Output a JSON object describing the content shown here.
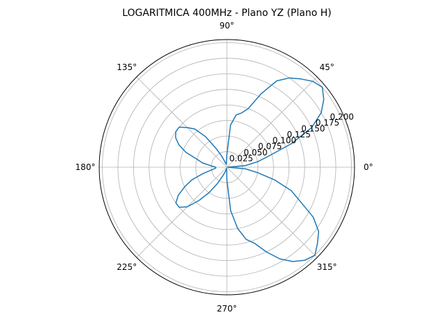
{
  "chart_data": {
    "type": "line",
    "projection": "polar",
    "title": "LOGARITMICA 400MHz - Plano YZ (Plano H)",
    "theta_unit": "degrees",
    "theta_ticks": [
      0,
      45,
      90,
      135,
      180,
      225,
      270,
      315
    ],
    "theta_tick_labels": [
      "0°",
      "45°",
      "90°",
      "135°",
      "180°",
      "225°",
      "270°",
      "315°"
    ],
    "r_ticks": [
      0.025,
      0.05,
      0.075,
      0.1,
      0.125,
      0.15,
      0.175,
      0.2
    ],
    "r_tick_labels": [
      "0.025",
      "0.050",
      "0.075",
      "0.100",
      "0.125",
      "0.150",
      "0.175",
      "0.200"
    ],
    "rlim": [
      0,
      0.205
    ],
    "grid": true,
    "series_color": "#1f77b4",
    "series": [
      {
        "theta": [
          0,
          5,
          10,
          15,
          20,
          25,
          30,
          35,
          40,
          45,
          50,
          55,
          60,
          65,
          70,
          75,
          80,
          85,
          90,
          95,
          100,
          105,
          110,
          115,
          120,
          125,
          130,
          135,
          140,
          145,
          150,
          155,
          160,
          165,
          170,
          175,
          180,
          185,
          190,
          195,
          200,
          205,
          210,
          215,
          220,
          225,
          230,
          235,
          240,
          245,
          250,
          255,
          260,
          265,
          270,
          275,
          280,
          285,
          290,
          295,
          300,
          305,
          310,
          315,
          320,
          325,
          330,
          335,
          340,
          345,
          350,
          355,
          360
        ],
        "r": [
          0.001,
          0.03,
          0.05,
          0.07,
          0.11,
          0.15,
          0.175,
          0.19,
          0.2,
          0.195,
          0.185,
          0.175,
          0.16,
          0.13,
          0.1,
          0.09,
          0.085,
          0.068,
          0.02,
          0.008,
          0.005,
          0.005,
          0.009,
          0.02,
          0.035,
          0.06,
          0.08,
          0.09,
          0.1,
          0.1,
          0.095,
          0.085,
          0.07,
          0.05,
          0.04,
          0.025,
          0.018,
          0.018,
          0.025,
          0.04,
          0.06,
          0.075,
          0.09,
          0.1,
          0.1,
          0.09,
          0.07,
          0.05,
          0.03,
          0.015,
          0.008,
          0.003,
          0.002,
          0.003,
          0.02,
          0.07,
          0.1,
          0.12,
          0.13,
          0.15,
          0.17,
          0.185,
          0.195,
          0.2,
          0.19,
          0.18,
          0.16,
          0.13,
          0.11,
          0.08,
          0.05,
          0.03,
          0.001
        ]
      }
    ]
  }
}
